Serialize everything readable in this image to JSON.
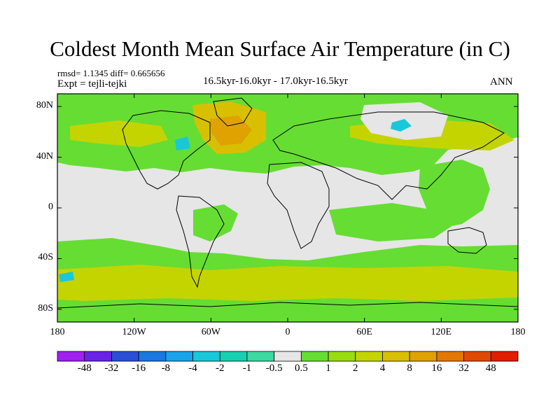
{
  "title": "Coldest Month Mean Surface Air Temperature (in C)",
  "stats": "rmsd= 1.1345 diff= 0.665656",
  "experiment": "Expt = tejli-tejki",
  "period": "16.5kyr-16.0kyr - 17.0kyr-16.5kyr",
  "season": "ANN",
  "map": {
    "lon_range": [
      -180,
      180
    ],
    "lat_range": [
      -90,
      90
    ],
    "lat_ticks": [
      {
        "value": 80,
        "label": "80N"
      },
      {
        "value": 40,
        "label": "40N"
      },
      {
        "value": 0,
        "label": "0"
      },
      {
        "value": -40,
        "label": "40S"
      },
      {
        "value": -80,
        "label": "80S"
      }
    ],
    "lon_ticks": [
      {
        "value": -180,
        "label": "180"
      },
      {
        "value": -120,
        "label": "120W"
      },
      {
        "value": -60,
        "label": "60W"
      },
      {
        "value": 0,
        "label": "0"
      },
      {
        "value": 60,
        "label": "60E"
      },
      {
        "value": 120,
        "label": "120E"
      },
      {
        "value": 180,
        "label": "180"
      }
    ]
  },
  "colorbar": {
    "labels": [
      "-48",
      "-32",
      "-16",
      "-8",
      "-4",
      "-2",
      "-1",
      "-0.5",
      "0.5",
      "1",
      "2",
      "4",
      "8",
      "16",
      "32",
      "48"
    ],
    "colors": [
      "#a020f0",
      "#6a22e6",
      "#2a4fd6",
      "#1a78e0",
      "#1aa3e8",
      "#19c8d8",
      "#18d0b0",
      "#3cd9a0",
      "#e6e6e6",
      "#66dd33",
      "#99dd11",
      "#c4d400",
      "#d8c000",
      "#e0a200",
      "#e27800",
      "#e04a00",
      "#e01e00"
    ]
  }
}
